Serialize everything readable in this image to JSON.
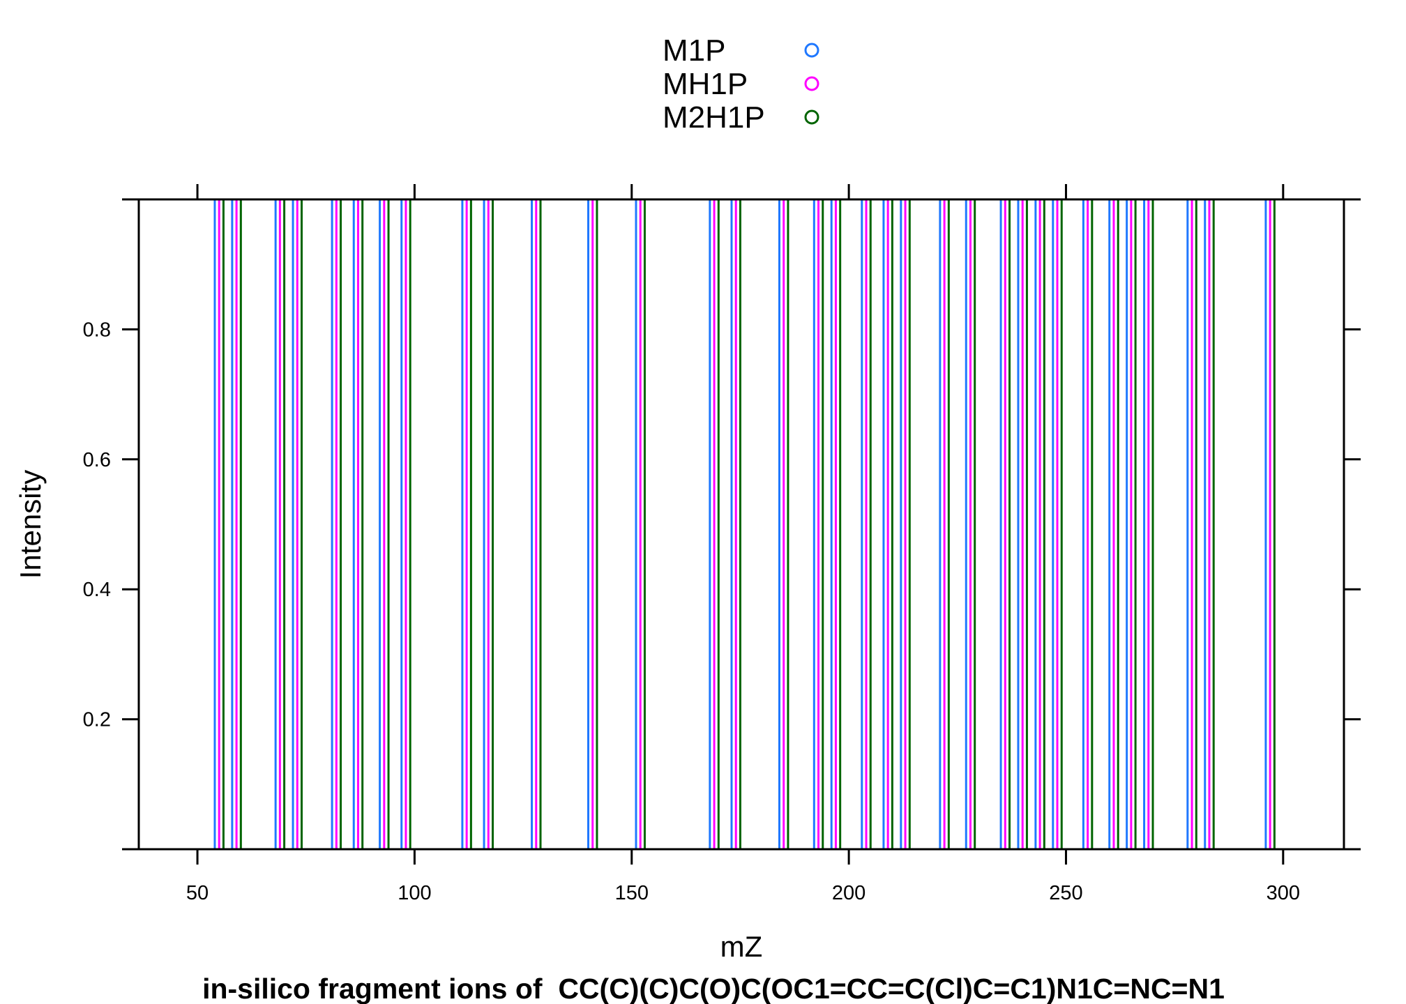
{
  "chart_data": {
    "type": "bar",
    "title": "in-silico fragment ions of  CC(C)(C)C(O)C(OC1=CC=C(Cl)C=C1)N1C=NC=N1",
    "xlabel": "mZ",
    "ylabel": "Intensity",
    "xlim": [
      36.5,
      314
    ],
    "ylim": [
      0,
      1
    ],
    "x_ticks": [
      "50",
      "100",
      "150",
      "200",
      "250",
      "300"
    ],
    "y_ticks": [
      "0.2",
      "0.4",
      "0.6",
      "0.8"
    ],
    "legend_position": "top",
    "series": [
      {
        "name": "M1P",
        "color": "#1f78ff",
        "marker": "circle",
        "x": [
          54.0,
          58.0,
          68.0,
          72.0,
          81.0,
          86.0,
          92.0,
          97.0,
          111.0,
          116.0,
          127.0,
          140.0,
          151.0,
          168.0,
          173.0,
          184.0,
          192.0,
          196.0,
          203.0,
          208.0,
          212.0,
          221.0,
          227.0,
          235.0,
          239.0,
          243.0,
          247.0,
          254.0,
          260.0,
          264.0,
          268.0,
          278.0,
          282.0,
          296.0
        ],
        "values": [
          1,
          1,
          1,
          1,
          1,
          1,
          1,
          1,
          1,
          1,
          1,
          1,
          1,
          1,
          1,
          1,
          1,
          1,
          1,
          1,
          1,
          1,
          1,
          1,
          1,
          1,
          1,
          1,
          1,
          1,
          1,
          1,
          1,
          1
        ]
      },
      {
        "name": "MH1P",
        "color": "#ff00ff",
        "marker": "circle",
        "x": [
          55.0,
          59.0,
          69.0,
          73.0,
          82.0,
          87.0,
          93.0,
          98.0,
          112.0,
          117.0,
          128.0,
          141.0,
          152.0,
          169.0,
          174.0,
          185.0,
          193.0,
          197.0,
          204.0,
          209.0,
          213.0,
          222.0,
          228.0,
          236.0,
          240.0,
          244.0,
          248.0,
          255.0,
          261.0,
          265.0,
          269.0,
          279.0,
          283.0,
          297.0
        ],
        "values": [
          1,
          1,
          1,
          1,
          1,
          1,
          1,
          1,
          1,
          1,
          1,
          1,
          1,
          1,
          1,
          1,
          1,
          1,
          1,
          1,
          1,
          1,
          1,
          1,
          1,
          1,
          1,
          1,
          1,
          1,
          1,
          1,
          1,
          1
        ]
      },
      {
        "name": "M2H1P",
        "color": "#006400",
        "marker": "circle",
        "x": [
          56.0,
          60.0,
          70.0,
          74.0,
          83.0,
          88.0,
          94.0,
          99.0,
          113.0,
          118.0,
          129.0,
          142.0,
          153.0,
          170.0,
          175.0,
          186.0,
          194.0,
          198.0,
          205.0,
          210.0,
          214.0,
          223.0,
          229.0,
          237.0,
          241.0,
          245.0,
          249.0,
          256.0,
          262.0,
          266.0,
          270.0,
          280.0,
          284.0,
          298.0
        ],
        "values": [
          1,
          1,
          1,
          1,
          1,
          1,
          1,
          1,
          1,
          1,
          1,
          1,
          1,
          1,
          1,
          1,
          1,
          1,
          1,
          1,
          1,
          1,
          1,
          1,
          1,
          1,
          1,
          1,
          1,
          1,
          1,
          1,
          1,
          1
        ]
      }
    ]
  }
}
